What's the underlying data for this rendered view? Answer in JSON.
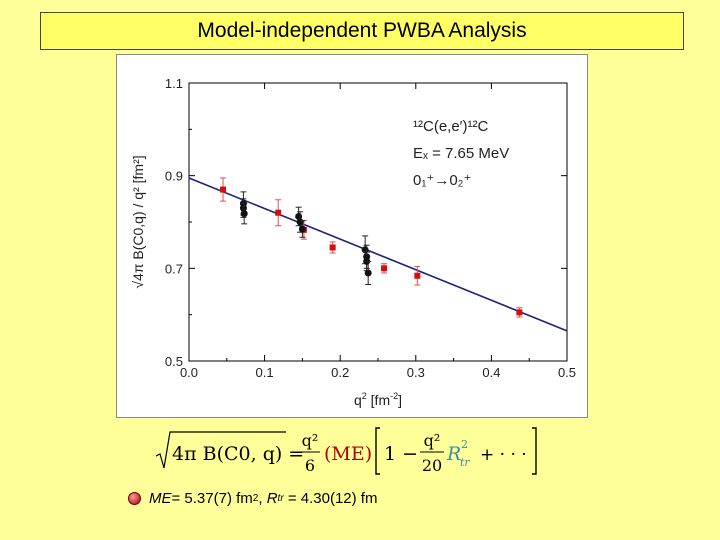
{
  "slide": {
    "title": "Model-independent PWBA Analysis",
    "result_me_label": "ME",
    "result_me_value": "= 5.37(7) fm",
    "result_me_exp": "2",
    "result_sep": ", ",
    "result_r_label": "R",
    "result_r_sub": "tr",
    "result_r_value": "= 4.30(12) fm"
  },
  "formula": {
    "sqrt_term": "4π B(C0, q) =",
    "frac1_num": "q²",
    "frac1_den": "6",
    "me": "(ME)",
    "bracket_one": "1 −",
    "frac2_num": "q²",
    "frac2_den": "20",
    "r": "R",
    "r_exp": "2",
    "r_sub": "tr",
    "tail": "+ · · ·"
  },
  "colors": {
    "background": "#ffff99",
    "title_box": "#ffff66",
    "fit_line": "#1a237e",
    "red_series": "#d01010",
    "black_series": "#111111",
    "me_color": "#b00000",
    "r_color": "#3a8fa0"
  },
  "chart_data": {
    "type": "scatter",
    "xlabel": "q",
    "xlabel_exp": "2",
    "xlabel_unit": "[fm",
    "xlabel_unit_exp": "-2",
    "xlabel_close": "]",
    "ylabel": "√4π B(C0,q) / q²  [fm²]",
    "xlim": [
      0.0,
      0.5
    ],
    "ylim": [
      0.5,
      1.1
    ],
    "xticks": [
      "0.0",
      "0.1",
      "0.2",
      "0.3",
      "0.4",
      "0.5"
    ],
    "yticks": [
      "0.5",
      "0.7",
      "0.9",
      "1.1"
    ],
    "annotation_lines": [
      "¹²C(e,e′)¹²C",
      "Eₓ = 7.65 MeV",
      "0₁⁺→0₂⁺"
    ],
    "fit_line": {
      "x": [
        0.0,
        0.5
      ],
      "y": [
        0.895,
        0.565
      ]
    },
    "series": [
      {
        "color": "red",
        "points": [
          {
            "x": 0.045,
            "y": 0.87,
            "err": 0.025
          },
          {
            "x": 0.118,
            "y": 0.82,
            "err": 0.028
          },
          {
            "x": 0.152,
            "y": 0.783,
            "err": 0.02
          },
          {
            "x": 0.19,
            "y": 0.745,
            "err": 0.012
          },
          {
            "x": 0.258,
            "y": 0.7,
            "err": 0.01
          },
          {
            "x": 0.302,
            "y": 0.684,
            "err": 0.02
          },
          {
            "x": 0.437,
            "y": 0.605,
            "err": 0.01
          }
        ]
      },
      {
        "color": "black",
        "points": [
          {
            "x": 0.072,
            "y": 0.84,
            "err": 0.025
          },
          {
            "x": 0.072,
            "y": 0.83,
            "err": 0.02
          },
          {
            "x": 0.073,
            "y": 0.818,
            "err": 0.022
          },
          {
            "x": 0.145,
            "y": 0.812,
            "err": 0.02
          },
          {
            "x": 0.147,
            "y": 0.8,
            "err": 0.022
          },
          {
            "x": 0.15,
            "y": 0.785,
            "err": 0.018
          },
          {
            "x": 0.233,
            "y": 0.74,
            "err": 0.03
          },
          {
            "x": 0.235,
            "y": 0.725,
            "err": 0.025
          },
          {
            "x": 0.235,
            "y": 0.715,
            "err": 0.02
          },
          {
            "x": 0.237,
            "y": 0.69,
            "err": 0.025
          }
        ]
      }
    ]
  }
}
